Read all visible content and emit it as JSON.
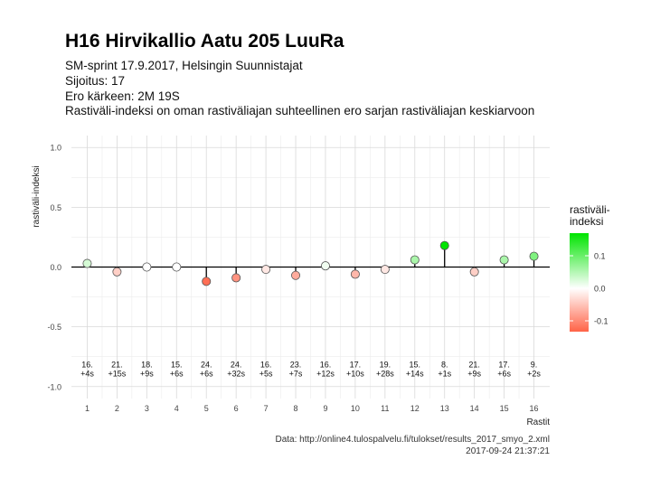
{
  "title": "H16 Hirvikallio Aatu 205 LuuRa",
  "subtitle_lines": [
    "SM-sprint 17.9.2017, Helsingin Suunnistajat",
    "Sijoitus: 17",
    "Ero kärkeen: 2M 19S",
    "Rastiväli-indeksi on oman rastiväliajan suhteellinen ero sarjan rastiväliajan keskiarvoon"
  ],
  "caption_lines": [
    "Data: http://online4.tulospalvelu.fi/tulokset/results_2017_smyo_2.xml",
    "2017-09-24 21:37:21"
  ],
  "legend": {
    "title": "rastiväli-indeksi",
    "ticks": [
      "0.1",
      "0.0",
      "-0.1"
    ],
    "colors": {
      "high": "#00e400",
      "mid": "#ffffff",
      "low": "#ff6347"
    }
  },
  "chart_data": {
    "type": "scatter",
    "style": "lollipop",
    "xlabel": "Rastit",
    "ylabel": "rastiväli-indeksi",
    "ylim": [
      -1.0,
      1.0
    ],
    "xlim": [
      1,
      16
    ],
    "yticks": [
      "1.0",
      "0.5",
      "0.0",
      "-0.5",
      "-1.0"
    ],
    "xticks": [
      "1",
      "2",
      "3",
      "4",
      "5",
      "6",
      "7",
      "8",
      "9",
      "10",
      "11",
      "12",
      "13",
      "14",
      "15",
      "16"
    ],
    "grid": true,
    "baseline": 0.0,
    "legend_position": "right",
    "x": [
      1,
      2,
      3,
      4,
      5,
      6,
      7,
      8,
      9,
      10,
      11,
      12,
      13,
      14,
      15,
      16
    ],
    "values": [
      0.03,
      -0.04,
      0.0,
      0.0,
      -0.12,
      -0.09,
      -0.02,
      -0.07,
      0.01,
      -0.06,
      -0.02,
      0.06,
      0.18,
      -0.04,
      0.06,
      0.09
    ],
    "annotations": [
      [
        "16.",
        "+4s"
      ],
      [
        "21.",
        "+15s"
      ],
      [
        "18.",
        "+9s"
      ],
      [
        "15.",
        "+6s"
      ],
      [
        "24.",
        "+6s"
      ],
      [
        "24.",
        "+32s"
      ],
      [
        "16.",
        "+5s"
      ],
      [
        "23.",
        "+7s"
      ],
      [
        "16.",
        "+12s"
      ],
      [
        "17.",
        "+10s"
      ],
      [
        "19.",
        "+28s"
      ],
      [
        "15.",
        "+14s"
      ],
      [
        "8.",
        "+1s"
      ],
      [
        "21.",
        "+9s"
      ],
      [
        "17.",
        "+6s"
      ],
      [
        "9.",
        "+2s"
      ]
    ]
  }
}
